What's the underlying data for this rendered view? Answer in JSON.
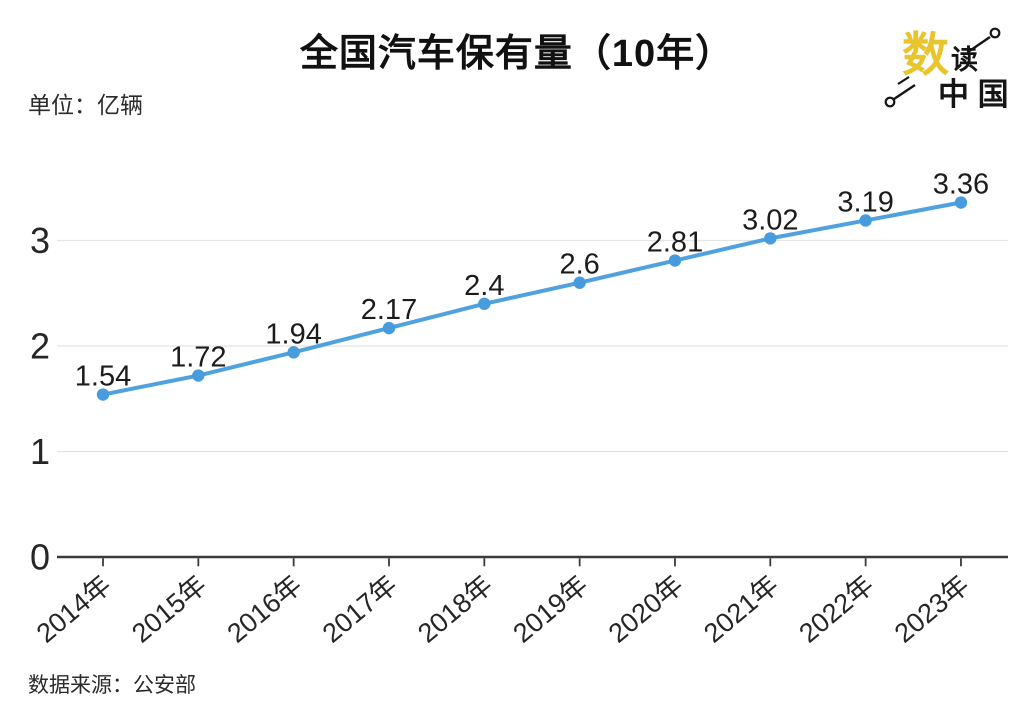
{
  "title": "全国汽车保有量（10年）",
  "unit_label": "单位：亿辆",
  "source_label": "数据来源：公安部",
  "logo": {
    "main_char": "数",
    "sub_char": "读",
    "bottom_text": "中 国",
    "accent_color": "#e8c42d",
    "ink_color": "#151515"
  },
  "chart_data": {
    "type": "line",
    "title": "全国汽车保有量（10年）",
    "unit": "亿辆",
    "source": "公安部",
    "categories": [
      "2014年",
      "2015年",
      "2016年",
      "2017年",
      "2018年",
      "2019年",
      "2020年",
      "2021年",
      "2022年",
      "2023年"
    ],
    "values": [
      1.54,
      1.72,
      1.94,
      2.17,
      2.4,
      2.6,
      2.81,
      3.02,
      3.19,
      3.36
    ],
    "value_labels": [
      "1.54",
      "1.72",
      "1.94",
      "2.17",
      "2.4",
      "2.6",
      "2.81",
      "3.02",
      "3.19",
      "3.36"
    ],
    "ylim": [
      0,
      3.5
    ],
    "yticks": [
      0,
      1,
      2,
      3
    ],
    "grid": true,
    "legend_position": "none",
    "line_color": "#4fa1e0",
    "marker_color": "#479cde",
    "grid_color": "#e4e4e4",
    "axis_color": "#3a3a3a",
    "tick_label_color": "#262626",
    "data_label_color": "#1c1c1c"
  }
}
